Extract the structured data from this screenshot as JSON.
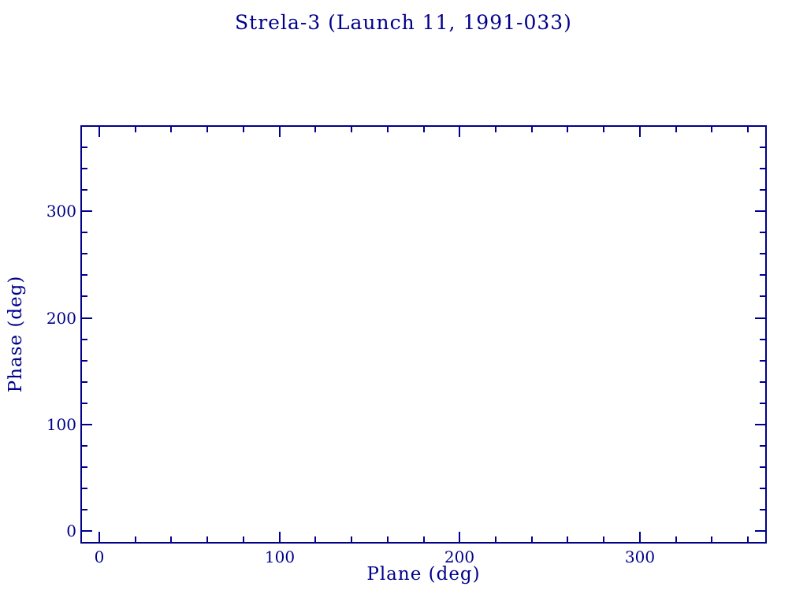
{
  "chart_data": {
    "type": "scatter",
    "title": "Strela-3 (Launch 11, 1991-033)",
    "xlabel": "Plane (deg)",
    "ylabel": "Phase (deg)",
    "xlim": [
      -10,
      370
    ],
    "ylim": [
      -11,
      380
    ],
    "x_major_ticks": [
      0,
      100,
      200,
      300
    ],
    "y_major_ticks": [
      0,
      100,
      200,
      300
    ],
    "x_tick_labels": [
      "0",
      "100",
      "200",
      "300"
    ],
    "y_tick_labels": [
      "0",
      "100",
      "200",
      "300"
    ],
    "x_minor_tick_interval": 20,
    "y_minor_tick_interval": 20,
    "grid": false,
    "legend": null,
    "series": [],
    "frame_color": "#00008B",
    "text_color": "#00008B",
    "background_color": "#FFFFFF"
  }
}
